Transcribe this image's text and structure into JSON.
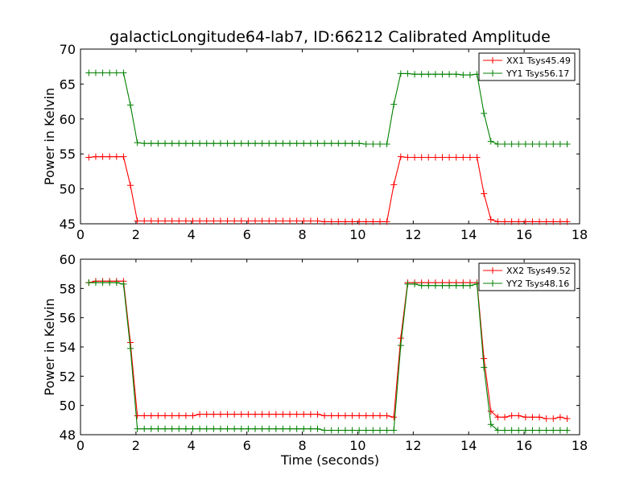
{
  "figure": {
    "title": "galacticLongitude64-lab7, ID:66212 Calibrated Amplitude"
  },
  "chart_data": [
    {
      "type": "line",
      "title": "galacticLongitude64-lab7, ID:66212 Calibrated Amplitude",
      "xlabel": "",
      "ylabel": "Power in Kelvin",
      "xlim": [
        0,
        18
      ],
      "ylim": [
        45,
        70
      ],
      "xticks": [
        "0",
        "2",
        "4",
        "6",
        "8",
        "10",
        "12",
        "14",
        "16",
        "18"
      ],
      "yticks": [
        "45",
        "50",
        "55",
        "60",
        "65",
        "70"
      ],
      "legend_position": "top-right",
      "grid": false,
      "x": [
        0.3,
        0.55,
        0.8,
        1.05,
        1.3,
        1.55,
        1.8,
        2.05,
        2.3,
        2.55,
        2.8,
        3.05,
        3.3,
        3.55,
        3.8,
        4.05,
        4.3,
        4.55,
        4.8,
        5.05,
        5.3,
        5.55,
        5.8,
        6.05,
        6.3,
        6.55,
        6.8,
        7.05,
        7.3,
        7.55,
        7.8,
        8.05,
        8.3,
        8.55,
        8.8,
        9.05,
        9.3,
        9.55,
        9.8,
        10.05,
        10.3,
        10.55,
        10.8,
        11.05,
        11.3,
        11.55,
        11.8,
        12.05,
        12.3,
        12.55,
        12.8,
        13.05,
        13.3,
        13.55,
        13.8,
        14.05,
        14.3,
        14.55,
        14.8,
        15.05,
        15.3,
        15.55,
        15.8,
        16.05,
        16.3,
        16.55,
        16.8,
        17.05,
        17.3,
        17.55
      ],
      "series": [
        {
          "name": "XX1 Tsys45.49",
          "color": "#ff0000",
          "values": [
            54.5,
            54.6,
            54.6,
            54.6,
            54.6,
            54.6,
            50.5,
            45.4,
            45.4,
            45.4,
            45.4,
            45.4,
            45.4,
            45.4,
            45.4,
            45.4,
            45.4,
            45.4,
            45.4,
            45.4,
            45.4,
            45.4,
            45.4,
            45.4,
            45.4,
            45.4,
            45.4,
            45.4,
            45.4,
            45.4,
            45.4,
            45.4,
            45.4,
            45.4,
            45.3,
            45.3,
            45.3,
            45.3,
            45.3,
            45.3,
            45.3,
            45.3,
            45.3,
            45.3,
            50.6,
            54.6,
            54.5,
            54.5,
            54.5,
            54.5,
            54.5,
            54.5,
            54.5,
            54.5,
            54.5,
            54.5,
            54.5,
            49.3,
            45.6,
            45.3,
            45.3,
            45.3,
            45.3,
            45.3,
            45.3,
            45.3,
            45.3,
            45.3,
            45.3,
            45.3
          ]
        },
        {
          "name": "YY1 Tsys56.17",
          "color": "#008000",
          "values": [
            66.6,
            66.6,
            66.6,
            66.6,
            66.6,
            66.6,
            62.0,
            56.6,
            56.5,
            56.5,
            56.5,
            56.5,
            56.5,
            56.5,
            56.5,
            56.5,
            56.5,
            56.5,
            56.5,
            56.5,
            56.5,
            56.5,
            56.5,
            56.5,
            56.5,
            56.5,
            56.5,
            56.5,
            56.5,
            56.5,
            56.5,
            56.5,
            56.5,
            56.5,
            56.5,
            56.5,
            56.5,
            56.5,
            56.5,
            56.5,
            56.4,
            56.4,
            56.4,
            56.4,
            62.1,
            66.5,
            66.5,
            66.4,
            66.4,
            66.4,
            66.4,
            66.4,
            66.4,
            66.4,
            66.3,
            66.3,
            66.4,
            60.8,
            56.8,
            56.4,
            56.4,
            56.4,
            56.4,
            56.4,
            56.4,
            56.4,
            56.4,
            56.4,
            56.4,
            56.4
          ]
        }
      ]
    },
    {
      "type": "line",
      "title": "",
      "xlabel": "Time (seconds)",
      "ylabel": "Power in Kelvin",
      "xlim": [
        0,
        18
      ],
      "ylim": [
        48,
        60
      ],
      "xticks": [
        "0",
        "2",
        "4",
        "6",
        "8",
        "10",
        "12",
        "14",
        "16",
        "18"
      ],
      "yticks": [
        "48",
        "50",
        "52",
        "54",
        "56",
        "58",
        "60"
      ],
      "legend_position": "top-right",
      "grid": false,
      "x": [
        0.3,
        0.55,
        0.8,
        1.05,
        1.3,
        1.55,
        1.8,
        2.05,
        2.3,
        2.55,
        2.8,
        3.05,
        3.3,
        3.55,
        3.8,
        4.05,
        4.3,
        4.55,
        4.8,
        5.05,
        5.3,
        5.55,
        5.8,
        6.05,
        6.3,
        6.55,
        6.8,
        7.05,
        7.3,
        7.55,
        7.8,
        8.05,
        8.3,
        8.55,
        8.8,
        9.05,
        9.3,
        9.55,
        9.8,
        10.05,
        10.3,
        10.55,
        10.8,
        11.05,
        11.3,
        11.55,
        11.8,
        12.05,
        12.3,
        12.55,
        12.8,
        13.05,
        13.3,
        13.55,
        13.8,
        14.05,
        14.3,
        14.55,
        14.8,
        15.05,
        15.3,
        15.55,
        15.8,
        16.05,
        16.3,
        16.55,
        16.8,
        17.05,
        17.3,
        17.55
      ],
      "series": [
        {
          "name": "XX2 Tsys49.52",
          "color": "#ff0000",
          "values": [
            58.4,
            58.5,
            58.5,
            58.5,
            58.5,
            58.5,
            54.3,
            49.3,
            49.3,
            49.3,
            49.3,
            49.3,
            49.3,
            49.3,
            49.3,
            49.3,
            49.4,
            49.4,
            49.4,
            49.4,
            49.4,
            49.4,
            49.4,
            49.4,
            49.4,
            49.4,
            49.4,
            49.4,
            49.4,
            49.4,
            49.4,
            49.4,
            49.4,
            49.4,
            49.3,
            49.3,
            49.3,
            49.3,
            49.3,
            49.3,
            49.3,
            49.3,
            49.3,
            49.3,
            49.2,
            54.6,
            58.4,
            58.4,
            58.4,
            58.4,
            58.4,
            58.4,
            58.4,
            58.4,
            58.4,
            58.4,
            58.4,
            53.2,
            49.6,
            49.2,
            49.2,
            49.3,
            49.3,
            49.2,
            49.2,
            49.2,
            49.1,
            49.1,
            49.2,
            49.1
          ]
        },
        {
          "name": "YY2 Tsys48.16",
          "color": "#008000",
          "values": [
            58.4,
            58.4,
            58.4,
            58.4,
            58.4,
            58.3,
            53.9,
            48.4,
            48.4,
            48.4,
            48.4,
            48.4,
            48.4,
            48.4,
            48.4,
            48.4,
            48.4,
            48.4,
            48.4,
            48.4,
            48.4,
            48.4,
            48.4,
            48.4,
            48.4,
            48.4,
            48.4,
            48.4,
            48.4,
            48.4,
            48.4,
            48.4,
            48.4,
            48.4,
            48.3,
            48.3,
            48.3,
            48.3,
            48.3,
            48.3,
            48.3,
            48.3,
            48.3,
            48.3,
            48.3,
            54.1,
            58.3,
            58.3,
            58.2,
            58.2,
            58.2,
            58.2,
            58.2,
            58.2,
            58.2,
            58.2,
            58.3,
            52.6,
            48.7,
            48.3,
            48.3,
            48.3,
            48.3,
            48.3,
            48.3,
            48.3,
            48.3,
            48.3,
            48.3,
            48.3
          ]
        }
      ]
    }
  ]
}
